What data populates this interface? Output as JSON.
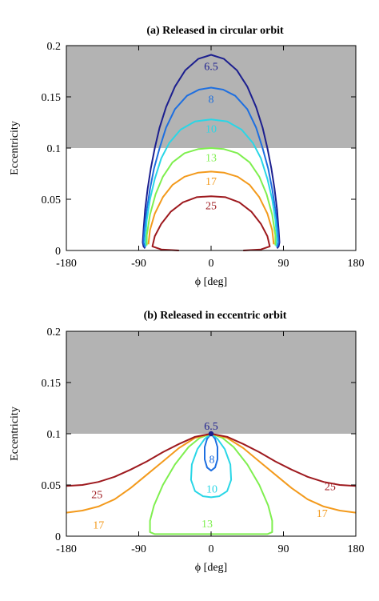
{
  "chart_data": [
    {
      "type": "line",
      "title": "(a) Released in circular orbit",
      "xlabel": "ϕ [deg]",
      "ylabel": "Eccentricity",
      "xlim": [
        -180,
        180
      ],
      "ylim": [
        0,
        0.2
      ],
      "xticks": [
        -180,
        -90,
        0,
        90,
        180
      ],
      "yticks": [
        0,
        0.05,
        0.1,
        0.15,
        0.2
      ],
      "xtick_labels": [
        "-180",
        "-90",
        "0",
        "90",
        "180"
      ],
      "ytick_labels": [
        "0",
        "0.05",
        "0.1",
        "0.15",
        "0.2"
      ],
      "shaded_region": {
        "y_from": 0.1,
        "y_to": 0.2,
        "color": "#b3b3b3"
      },
      "series": [
        {
          "name": "6.5",
          "color": "#1c1f8f",
          "label_at": [
            0,
            0.18
          ],
          "points": [
            [
              -82,
              0.002
            ],
            [
              -84,
              0.004
            ],
            [
              -85,
              0.008
            ],
            [
              -84,
              0.02
            ],
            [
              -82,
              0.04
            ],
            [
              -79,
              0.06
            ],
            [
              -75,
              0.08
            ],
            [
              -70,
              0.1
            ],
            [
              -64,
              0.12
            ],
            [
              -56,
              0.14
            ],
            [
              -45,
              0.16
            ],
            [
              -32,
              0.176
            ],
            [
              -16,
              0.187
            ],
            [
              0,
              0.191
            ],
            [
              16,
              0.187
            ],
            [
              32,
              0.176
            ],
            [
              45,
              0.16
            ],
            [
              56,
              0.14
            ],
            [
              64,
              0.12
            ],
            [
              70,
              0.1
            ],
            [
              75,
              0.08
            ],
            [
              79,
              0.06
            ],
            [
              82,
              0.04
            ],
            [
              84,
              0.02
            ],
            [
              85,
              0.008
            ],
            [
              84,
              0.004
            ],
            [
              82,
              0.002
            ]
          ]
        },
        {
          "name": "8",
          "color": "#1e6fe0",
          "label_at": [
            0,
            0.148
          ],
          "points": [
            [
              -82,
              0.003
            ],
            [
              -84,
              0.008
            ],
            [
              -83,
              0.02
            ],
            [
              -80,
              0.04
            ],
            [
              -76,
              0.06
            ],
            [
              -71,
              0.08
            ],
            [
              -64,
              0.1
            ],
            [
              -56,
              0.12
            ],
            [
              -45,
              0.138
            ],
            [
              -30,
              0.151
            ],
            [
              -15,
              0.157
            ],
            [
              0,
              0.159
            ],
            [
              15,
              0.157
            ],
            [
              30,
              0.151
            ],
            [
              45,
              0.138
            ],
            [
              56,
              0.12
            ],
            [
              64,
              0.1
            ],
            [
              71,
              0.08
            ],
            [
              76,
              0.06
            ],
            [
              80,
              0.04
            ],
            [
              83,
              0.02
            ],
            [
              84,
              0.008
            ],
            [
              82,
              0.003
            ]
          ]
        },
        {
          "name": "10",
          "color": "#29d6e6",
          "label_at": [
            0,
            0.119
          ],
          "points": [
            [
              -81,
              0.004
            ],
            [
              -82,
              0.01
            ],
            [
              -80,
              0.03
            ],
            [
              -76,
              0.05
            ],
            [
              -70,
              0.07
            ],
            [
              -62,
              0.09
            ],
            [
              -52,
              0.105
            ],
            [
              -38,
              0.118
            ],
            [
              -20,
              0.126
            ],
            [
              0,
              0.128
            ],
            [
              20,
              0.126
            ],
            [
              38,
              0.118
            ],
            [
              52,
              0.105
            ],
            [
              62,
              0.09
            ],
            [
              70,
              0.07
            ],
            [
              76,
              0.05
            ],
            [
              80,
              0.03
            ],
            [
              82,
              0.01
            ],
            [
              81,
              0.004
            ]
          ]
        },
        {
          "name": "13",
          "color": "#7fef4f",
          "label_at": [
            0,
            0.091
          ],
          "points": [
            [
              -80,
              0.005
            ],
            [
              -80,
              0.015
            ],
            [
              -76,
              0.035
            ],
            [
              -69,
              0.055
            ],
            [
              -60,
              0.072
            ],
            [
              -48,
              0.086
            ],
            [
              -33,
              0.095
            ],
            [
              -16,
              0.099
            ],
            [
              0,
              0.1
            ],
            [
              16,
              0.099
            ],
            [
              33,
              0.095
            ],
            [
              48,
              0.086
            ],
            [
              60,
              0.072
            ],
            [
              69,
              0.055
            ],
            [
              76,
              0.035
            ],
            [
              80,
              0.015
            ],
            [
              80,
              0.005
            ]
          ]
        },
        {
          "name": "17",
          "color": "#f39a1c",
          "label_at": [
            0,
            0.068
          ],
          "points": [
            [
              -78,
              0.006
            ],
            [
              -76,
              0.02
            ],
            [
              -70,
              0.036
            ],
            [
              -60,
              0.052
            ],
            [
              -48,
              0.064
            ],
            [
              -33,
              0.072
            ],
            [
              -16,
              0.076
            ],
            [
              0,
              0.077
            ],
            [
              16,
              0.076
            ],
            [
              33,
              0.072
            ],
            [
              48,
              0.064
            ],
            [
              60,
              0.052
            ],
            [
              70,
              0.036
            ],
            [
              76,
              0.02
            ],
            [
              78,
              0.006
            ]
          ]
        },
        {
          "name": "25",
          "color": "#9e1a1f",
          "label_at": [
            0,
            0.044
          ],
          "points": [
            [
              -40,
              0.0
            ],
            [
              -62,
              0.001
            ],
            [
              -73,
              0.004
            ],
            [
              -70,
              0.014
            ],
            [
              -62,
              0.026
            ],
            [
              -50,
              0.038
            ],
            [
              -35,
              0.047
            ],
            [
              -18,
              0.052
            ],
            [
              0,
              0.053
            ],
            [
              18,
              0.052
            ],
            [
              35,
              0.047
            ],
            [
              50,
              0.038
            ],
            [
              62,
              0.026
            ],
            [
              70,
              0.014
            ],
            [
              73,
              0.004
            ],
            [
              62,
              0.001
            ],
            [
              40,
              0.0
            ]
          ]
        }
      ]
    },
    {
      "type": "line",
      "title": "(b) Released in eccentric orbit",
      "xlabel": "ϕ [deg]",
      "ylabel": "Eccentricity",
      "xlim": [
        -180,
        180
      ],
      "ylim": [
        0,
        0.2
      ],
      "xticks": [
        -180,
        -90,
        0,
        90,
        180
      ],
      "yticks": [
        0,
        0.05,
        0.1,
        0.15,
        0.2
      ],
      "xtick_labels": [
        "-180",
        "-90",
        "0",
        "90",
        "180"
      ],
      "ytick_labels": [
        "0",
        "0.05",
        "0.1",
        "0.15",
        "0.2"
      ],
      "shaded_region": {
        "y_from": 0.1,
        "y_to": 0.2,
        "color": "#b3b3b3"
      },
      "marker": {
        "x": 0,
        "y": 0.1,
        "color": "#1c1f8f"
      },
      "series": [
        {
          "name": "6.5",
          "color": "#1c1f8f",
          "label_at": [
            0,
            0.108
          ],
          "points": [
            [
              0,
              0.1
            ]
          ]
        },
        {
          "name": "8",
          "color": "#1e6fe0",
          "label_at": [
            1,
            0.0755
          ],
          "points": [
            [
              0,
              0.1
            ],
            [
              -5,
              0.095
            ],
            [
              -8,
              0.087
            ],
            [
              -8,
              0.075
            ],
            [
              -5,
              0.067
            ],
            [
              0,
              0.064
            ],
            [
              5,
              0.067
            ],
            [
              8,
              0.075
            ],
            [
              8,
              0.087
            ],
            [
              5,
              0.095
            ],
            [
              0,
              0.1
            ]
          ]
        },
        {
          "name": "10",
          "color": "#29d6e6",
          "label_at": [
            1,
            0.0465
          ],
          "points": [
            [
              0,
              0.1
            ],
            [
              -8,
              0.095
            ],
            [
              -17,
              0.085
            ],
            [
              -24,
              0.07
            ],
            [
              -25,
              0.055
            ],
            [
              -20,
              0.044
            ],
            [
              -10,
              0.039
            ],
            [
              0,
              0.038
            ],
            [
              10,
              0.039
            ],
            [
              20,
              0.044
            ],
            [
              25,
              0.055
            ],
            [
              24,
              0.07
            ],
            [
              17,
              0.085
            ],
            [
              8,
              0.095
            ],
            [
              0,
              0.1
            ]
          ]
        },
        {
          "name": "13",
          "color": "#7fef4f",
          "label_at": [
            -5,
            0.0125
          ],
          "points": [
            [
              0,
              0.1
            ],
            [
              -14,
              0.096
            ],
            [
              -28,
              0.087
            ],
            [
              -45,
              0.07
            ],
            [
              -60,
              0.05
            ],
            [
              -71,
              0.03
            ],
            [
              -76,
              0.015
            ],
            [
              -76,
              0.004
            ],
            [
              -70,
              0.002
            ],
            [
              0,
              0.002
            ],
            [
              70,
              0.002
            ],
            [
              76,
              0.004
            ],
            [
              76,
              0.015
            ],
            [
              71,
              0.03
            ],
            [
              60,
              0.05
            ],
            [
              45,
              0.07
            ],
            [
              28,
              0.087
            ],
            [
              14,
              0.096
            ],
            [
              0,
              0.1
            ]
          ]
        },
        {
          "name": "17",
          "color": "#f39a1c",
          "label_at": [
            -140,
            0.0115
          ],
          "points": [
            [
              -180,
              0.023
            ],
            [
              -160,
              0.025
            ],
            [
              -140,
              0.029
            ],
            [
              -120,
              0.036
            ],
            [
              -100,
              0.047
            ],
            [
              -80,
              0.06
            ],
            [
              -60,
              0.073
            ],
            [
              -40,
              0.086
            ],
            [
              -20,
              0.096
            ],
            [
              0,
              0.1
            ],
            [
              20,
              0.096
            ],
            [
              40,
              0.086
            ],
            [
              60,
              0.073
            ],
            [
              80,
              0.06
            ],
            [
              100,
              0.047
            ],
            [
              120,
              0.036
            ],
            [
              140,
              0.029
            ],
            [
              160,
              0.025
            ],
            [
              180,
              0.023
            ]
          ]
        },
        {
          "name": "25",
          "color": "#9e1a1f",
          "label_at": [
            -142,
            0.041
          ],
          "points": [
            [
              -180,
              0.049
            ],
            [
              -160,
              0.05
            ],
            [
              -140,
              0.053
            ],
            [
              -120,
              0.058
            ],
            [
              -100,
              0.065
            ],
            [
              -80,
              0.073
            ],
            [
              -60,
              0.082
            ],
            [
              -40,
              0.09
            ],
            [
              -20,
              0.097
            ],
            [
              0,
              0.1
            ],
            [
              20,
              0.097
            ],
            [
              40,
              0.09
            ],
            [
              60,
              0.082
            ],
            [
              80,
              0.073
            ],
            [
              100,
              0.065
            ],
            [
              120,
              0.058
            ],
            [
              140,
              0.053
            ],
            [
              160,
              0.05
            ],
            [
              180,
              0.049
            ]
          ]
        }
      ],
      "extra_labels": [
        {
          "series": "17",
          "at": [
            138,
            0.0225
          ]
        },
        {
          "series": "25",
          "at": [
            148,
            0.049
          ]
        }
      ]
    }
  ]
}
